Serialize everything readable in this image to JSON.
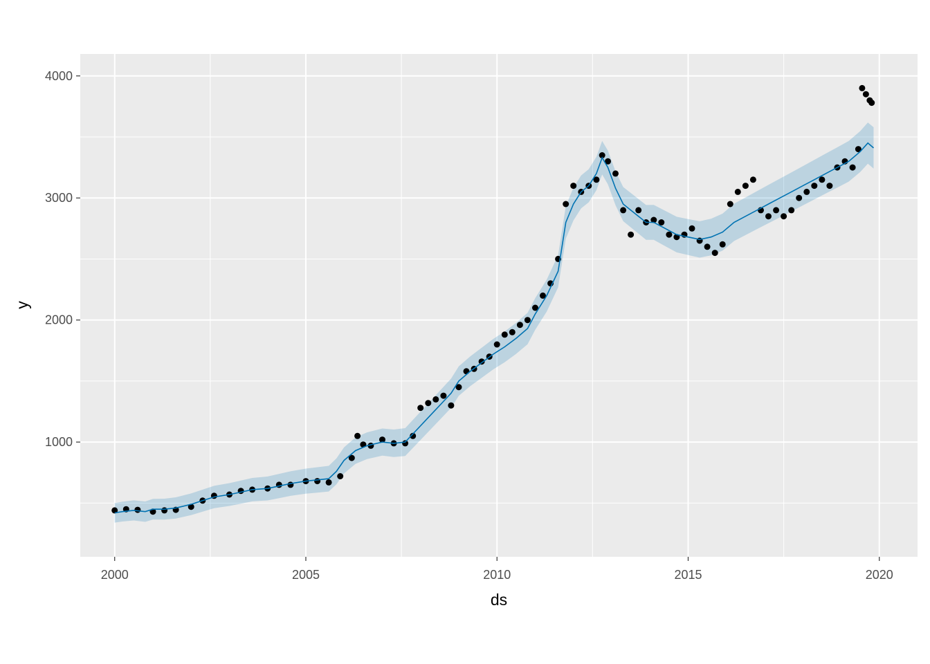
{
  "chart_data": {
    "type": "line",
    "title": "",
    "xlabel": "ds",
    "ylabel": "y",
    "xlim": [
      1999.1,
      2021.0
    ],
    "ylim": [
      60,
      4180
    ],
    "x_ticks": [
      {
        "value": 2000,
        "label": "2000"
      },
      {
        "value": 2005,
        "label": "2005"
      },
      {
        "value": 2010,
        "label": "2010"
      },
      {
        "value": 2015,
        "label": "2015"
      },
      {
        "value": 2020,
        "label": "2020"
      }
    ],
    "y_ticks": [
      {
        "value": 1000,
        "label": "1000"
      },
      {
        "value": 2000,
        "label": "2000"
      },
      {
        "value": 3000,
        "label": "3000"
      },
      {
        "value": 4000,
        "label": "4000"
      }
    ],
    "x_minor": [
      2002.5,
      2007.5,
      2012.5,
      2017.5
    ],
    "y_minor": [
      500,
      1500,
      2500,
      3500
    ],
    "grid": true,
    "colors": {
      "panel": "#ebebeb",
      "grid": "#ffffff",
      "points": "#000000",
      "forecast_line": "#0072b2",
      "interval": "#0072b2"
    },
    "series": [
      {
        "role": "observed",
        "style": "points",
        "x": [
          2000.0,
          2000.3,
          2000.6,
          2001.0,
          2001.3,
          2001.6,
          2002.0,
          2002.3,
          2002.6,
          2003.0,
          2003.3,
          2003.6,
          2004.0,
          2004.3,
          2004.6,
          2005.0,
          2005.3,
          2005.6,
          2005.9,
          2006.2,
          2006.35,
          2006.5,
          2006.7,
          2007.0,
          2007.3,
          2007.6,
          2007.8,
          2008.0,
          2008.2,
          2008.4,
          2008.6,
          2008.8,
          2009.0,
          2009.2,
          2009.4,
          2009.6,
          2009.8,
          2010.0,
          2010.2,
          2010.4,
          2010.6,
          2010.8,
          2011.0,
          2011.2,
          2011.4,
          2011.6,
          2011.8,
          2012.0,
          2012.2,
          2012.4,
          2012.6,
          2012.75,
          2012.9,
          2013.1,
          2013.3,
          2013.5,
          2013.7,
          2013.9,
          2014.1,
          2014.3,
          2014.5,
          2014.7,
          2014.9,
          2015.1,
          2015.3,
          2015.5,
          2015.7,
          2015.9,
          2016.1,
          2016.3,
          2016.5,
          2016.7,
          2016.9,
          2017.1,
          2017.3,
          2017.5,
          2017.7,
          2017.9,
          2018.1,
          2018.3,
          2018.5,
          2018.7,
          2018.9,
          2019.1,
          2019.3,
          2019.45,
          2019.55,
          2019.65,
          2019.75,
          2019.8
        ],
        "y": [
          440,
          450,
          445,
          430,
          440,
          445,
          470,
          520,
          560,
          570,
          600,
          610,
          620,
          650,
          650,
          680,
          680,
          670,
          720,
          870,
          1050,
          980,
          970,
          1020,
          990,
          990,
          1050,
          1280,
          1320,
          1350,
          1380,
          1300,
          1450,
          1580,
          1600,
          1660,
          1700,
          1800,
          1880,
          1900,
          1960,
          2000,
          2100,
          2200,
          2300,
          2500,
          2950,
          3100,
          3050,
          3100,
          3150,
          3350,
          3300,
          3200,
          2900,
          2700,
          2900,
          2800,
          2820,
          2800,
          2700,
          2680,
          2700,
          2750,
          2650,
          2600,
          2550,
          2620,
          2950,
          3050,
          3100,
          3150,
          2900,
          2850,
          2900,
          2850,
          2900,
          3000,
          3050,
          3100,
          3150,
          3100,
          3250,
          3300,
          3250,
          3400,
          3900,
          3850,
          3800,
          3780
        ]
      },
      {
        "role": "forecast",
        "style": "line",
        "x": [
          2000.0,
          2000.2,
          2000.5,
          2000.8,
          2001.0,
          2001.3,
          2001.6,
          2002.0,
          2002.3,
          2002.6,
          2003.0,
          2003.3,
          2003.6,
          2004.0,
          2004.3,
          2004.6,
          2005.0,
          2005.3,
          2005.6,
          2005.8,
          2006.0,
          2006.3,
          2006.6,
          2007.0,
          2007.3,
          2007.6,
          2007.9,
          2008.2,
          2008.5,
          2008.8,
          2009.0,
          2009.3,
          2009.6,
          2009.9,
          2010.2,
          2010.5,
          2010.8,
          2011.0,
          2011.3,
          2011.6,
          2011.8,
          2012.0,
          2012.2,
          2012.4,
          2012.6,
          2012.75,
          2012.9,
          2013.1,
          2013.3,
          2013.5,
          2013.7,
          2013.9,
          2014.1,
          2014.4,
          2014.7,
          2015.0,
          2015.3,
          2015.6,
          2015.9,
          2016.2,
          2016.5,
          2016.8,
          2017.1,
          2017.4,
          2017.7,
          2018.0,
          2018.3,
          2018.6,
          2018.9,
          2019.2,
          2019.5,
          2019.7,
          2019.85
        ],
        "y": [
          420,
          430,
          440,
          430,
          450,
          450,
          460,
          490,
          520,
          550,
          570,
          590,
          610,
          620,
          640,
          660,
          680,
          690,
          700,
          760,
          850,
          930,
          970,
          1000,
          990,
          1000,
          1100,
          1200,
          1300,
          1400,
          1500,
          1580,
          1650,
          1720,
          1780,
          1850,
          1930,
          2050,
          2200,
          2400,
          2800,
          2950,
          3050,
          3100,
          3200,
          3330,
          3250,
          3080,
          2950,
          2900,
          2850,
          2800,
          2800,
          2750,
          2700,
          2680,
          2660,
          2680,
          2720,
          2800,
          2850,
          2900,
          2950,
          3000,
          3050,
          3100,
          3150,
          3200,
          3250,
          3300,
          3380,
          3450,
          3410
        ]
      }
    ]
  }
}
